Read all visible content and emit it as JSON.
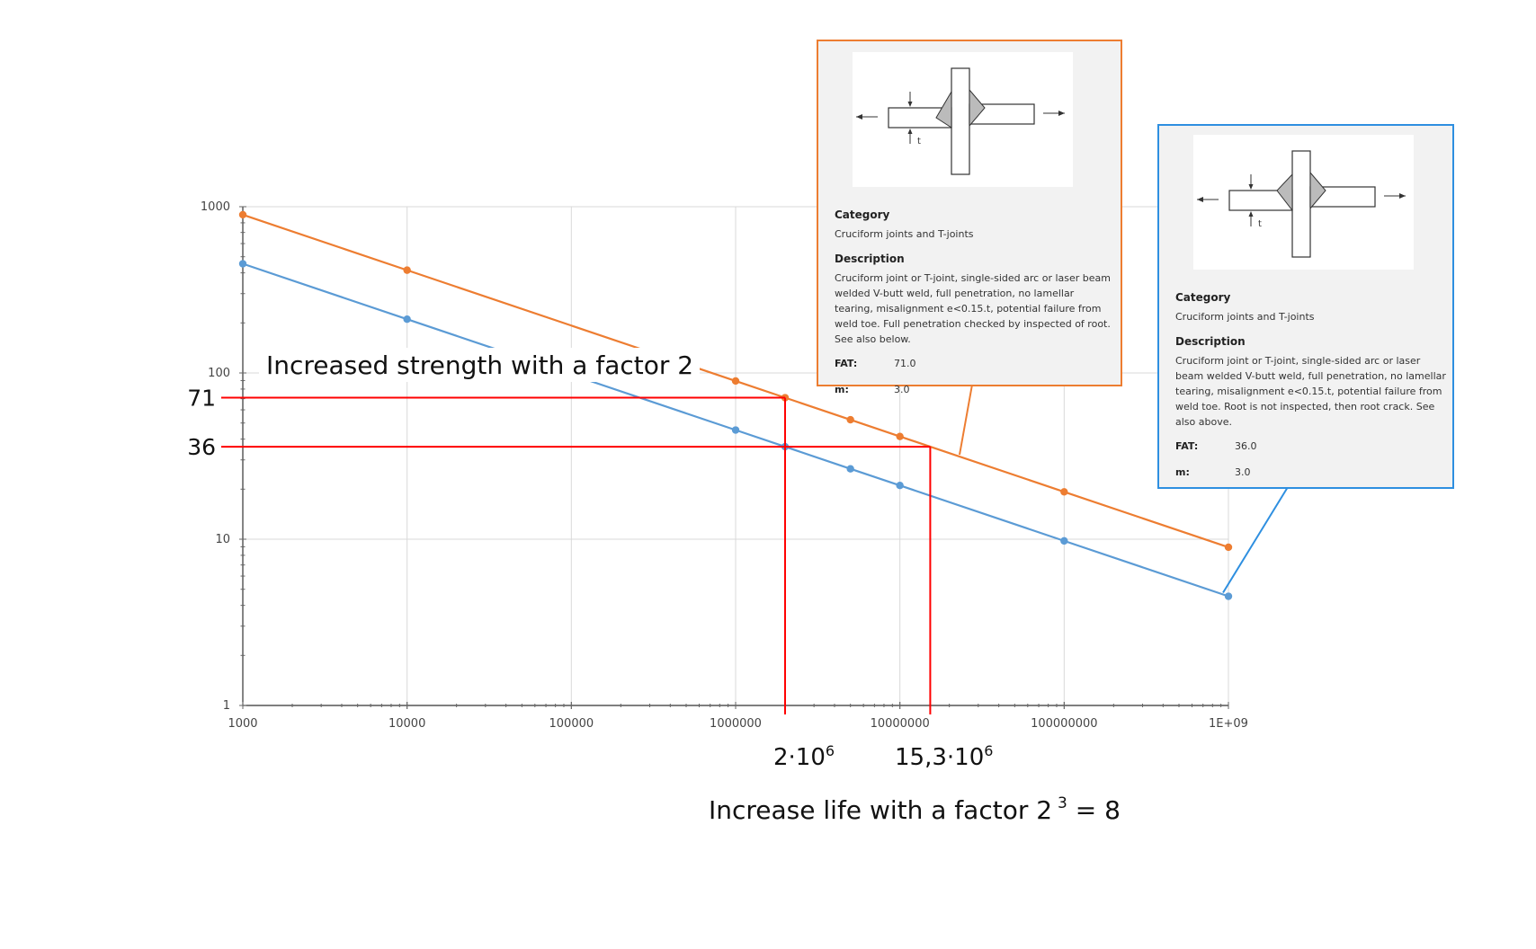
{
  "chart_data": {
    "type": "line",
    "x_scale": "log",
    "y_scale": "log",
    "xlim": [
      1000,
      1000000000
    ],
    "ylim": [
      1,
      1000
    ],
    "x_tick_labels": [
      "1000",
      "10000",
      "100000",
      "1000000",
      "10000000",
      "100000000",
      "1E+09"
    ],
    "y_tick_labels": [
      "1",
      "10",
      "100",
      "1000"
    ],
    "grid": true,
    "series": [
      {
        "color": "#ed7d31",
        "points": [
          [
            1000,
            894.5
          ],
          [
            10000,
            415.2
          ],
          [
            1000000,
            89.45
          ],
          [
            2000000,
            71
          ],
          [
            5000000,
            52.3
          ],
          [
            10000000,
            41.5
          ],
          [
            100000000,
            19.27
          ],
          [
            1000000000,
            8.945
          ]
        ]
      },
      {
        "color": "#5b9bd5",
        "points": [
          [
            1000,
            453.6
          ],
          [
            10000,
            210.5
          ],
          [
            1000000,
            45.36
          ],
          [
            2000000,
            36
          ],
          [
            5000000,
            26.5
          ],
          [
            10000000,
            21.05
          ],
          [
            100000000,
            9.77
          ],
          [
            1000000000,
            4.536
          ]
        ]
      }
    ],
    "reference_lines": [
      {
        "y": 71,
        "x": 2000000,
        "label": "71",
        "color": "#ff0000"
      },
      {
        "y": 36,
        "x": 15300000,
        "label": "36",
        "color": "#ff0000"
      }
    ],
    "annotations": {
      "strength": "Increased strength with a factor 2",
      "x_mark_1": {
        "base": "2·10",
        "exp": "6"
      },
      "x_mark_2": {
        "base": "15,3·10",
        "exp": "6"
      },
      "life": {
        "pre": "Increase life with a factor 2",
        "exp": "3",
        "post": " = 8"
      }
    }
  },
  "tooltips": {
    "orange": {
      "category_heading": "Category",
      "category": "Cruciform joints and T-joints",
      "description_heading": "Description",
      "description": "Cruciform joint or T-joint, single-sided arc or laser beam welded V-butt weld, full penetration, no lamellar tearing, misalignment e<0.15.t, potential failure from weld toe. Full penetration checked by inspected of root. See also below.",
      "fat_label": "FAT:",
      "fat": "71.0",
      "m_label": "m:",
      "m": "3.0",
      "diagram_t": "t",
      "color": "#ed7d31"
    },
    "blue": {
      "category_heading": "Category",
      "category": "Cruciform joints and T-joints",
      "description_heading": "Description",
      "description": "Cruciform joint or T-joint, single-sided arc or laser beam welded V-butt weld, full penetration, no lamellar tearing, misalignment e<0.15.t, potential failure from weld toe. Root is not inspected, then root crack. See also above.",
      "fat_label": "FAT:",
      "fat": "36.0",
      "m_label": "m:",
      "m": "3.0",
      "diagram_t": "t",
      "color": "#2e8fe0"
    }
  }
}
